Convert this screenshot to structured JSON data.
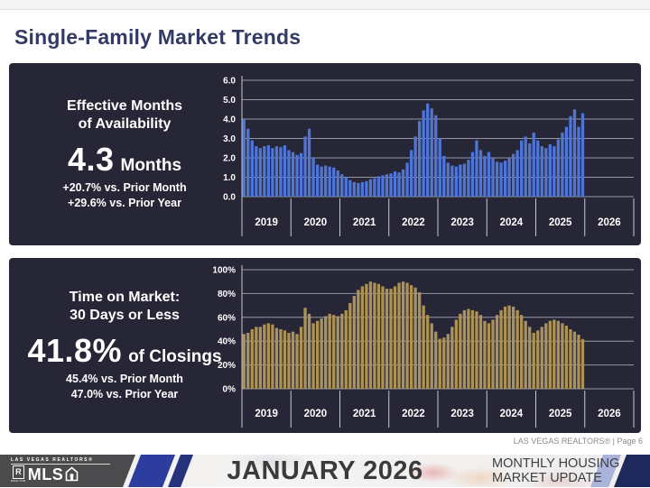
{
  "page": {
    "title": "Single-Family Market Trends",
    "credit": "LAS VEGAS REALTORS® | Page 6"
  },
  "footer": {
    "month_label": "JANUARY 2026",
    "housing_line1": "MONTHLY HOUSING",
    "housing_line2": "MARKET UPDATE",
    "logo_top": "LAS VEGAS REALTORS®",
    "logo_r": "R",
    "logo_r_sub": "REALTOR",
    "logo_mls": "MLS",
    "colors": {
      "dark_gray": "#4b4b4e",
      "blue_stripe": "#2c3d9e",
      "lavender_stripe": "#aab3da",
      "navy_corner": "#1e295b"
    }
  },
  "chart_data": [
    {
      "type": "bar",
      "title": "Effective Months of Availability",
      "title_line1": "Effective Months",
      "title_line2": "of Availability",
      "stat": {
        "value": "4.3",
        "unit": "Months",
        "vs_prior_month": "+20.7% vs. Prior Month",
        "vs_prior_year": "+29.6% vs. Prior Year"
      },
      "bar_color": "#4f75d7",
      "panel_bg": "#262637",
      "x_start": "Jan 2019",
      "x_end": "Dec 2025",
      "x_year_labels": [
        "2019",
        "2020",
        "2021",
        "2022",
        "2023",
        "2024",
        "2025",
        "2026"
      ],
      "ylim": [
        0,
        6
      ],
      "ytick_values": [
        6,
        5,
        4,
        3,
        2,
        1,
        0
      ],
      "ytick_labels": [
        "6.0",
        "5.0",
        "4.0",
        "3.0",
        "2.0",
        "1.0",
        "0.0"
      ],
      "grid": true,
      "legend": "none",
      "values": [
        4.0,
        3.5,
        2.9,
        2.6,
        2.5,
        2.6,
        2.65,
        2.5,
        2.6,
        2.55,
        2.65,
        2.4,
        2.3,
        2.15,
        2.25,
        3.1,
        3.5,
        2.0,
        1.65,
        1.55,
        1.6,
        1.55,
        1.5,
        1.35,
        1.15,
        1.0,
        0.85,
        0.75,
        0.7,
        0.75,
        0.8,
        0.9,
        0.95,
        1.05,
        1.1,
        1.15,
        1.2,
        1.3,
        1.25,
        1.4,
        1.75,
        2.4,
        3.1,
        3.9,
        4.45,
        4.8,
        4.55,
        4.2,
        3.0,
        2.1,
        1.75,
        1.6,
        1.55,
        1.65,
        1.7,
        1.9,
        2.3,
        2.9,
        2.4,
        2.1,
        2.3,
        2.0,
        1.8,
        1.75,
        1.85,
        2.0,
        2.2,
        2.4,
        2.9,
        3.1,
        2.75,
        3.3,
        2.9,
        2.6,
        2.5,
        2.7,
        2.6,
        2.95,
        3.3,
        3.6,
        4.15,
        4.5,
        3.6,
        4.3
      ]
    },
    {
      "type": "bar",
      "title": "Time on Market: 30 Days or Less",
      "title_line1": "Time on Market:",
      "title_line2": "30 Days or Less",
      "stat": {
        "value": "41.8%",
        "unit": "of Closings",
        "vs_prior_month": "45.4% vs. Prior Month",
        "vs_prior_year": "47.0% vs. Prior Year"
      },
      "bar_color": "#ad9258",
      "panel_bg": "#262637",
      "x_start": "Jan 2019",
      "x_end": "Dec 2025",
      "x_year_labels": [
        "2019",
        "2020",
        "2021",
        "2022",
        "2023",
        "2024",
        "2025",
        "2026"
      ],
      "ylim": [
        0,
        100
      ],
      "ytick_values": [
        100,
        80,
        60,
        40,
        20,
        0
      ],
      "ytick_labels": [
        "100%",
        "80%",
        "60%",
        "40%",
        "20%",
        "0%"
      ],
      "grid": true,
      "legend": "none",
      "values": [
        46,
        47,
        50,
        52,
        52,
        54,
        55,
        54,
        51,
        50,
        49,
        47,
        48,
        46,
        52,
        68,
        63,
        55,
        57,
        59,
        61,
        63,
        62,
        61,
        63,
        66,
        72,
        78,
        83,
        86,
        88,
        90,
        89,
        88,
        86,
        84,
        84,
        86,
        89,
        90,
        89,
        87,
        85,
        81,
        70,
        62,
        55,
        48,
        42,
        43,
        46,
        52,
        58,
        63,
        66,
        67,
        66,
        65,
        62,
        57,
        55,
        58,
        62,
        66,
        69,
        70,
        69,
        66,
        62,
        57,
        52,
        47,
        49,
        52,
        55,
        57,
        58,
        57,
        55,
        53,
        50,
        48,
        45.4,
        41.8
      ]
    }
  ]
}
